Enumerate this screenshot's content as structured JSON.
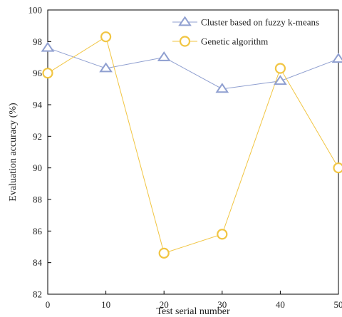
{
  "chart_data": {
    "type": "line",
    "title": "",
    "xlabel": "Test serial number",
    "ylabel": "Evaluation accuracy (%)",
    "x": [
      0,
      10,
      20,
      30,
      40,
      50
    ],
    "xlim": [
      0,
      50
    ],
    "ylim": [
      82,
      100
    ],
    "xticks": [
      0,
      10,
      20,
      30,
      40,
      50
    ],
    "yticks": [
      82,
      84,
      86,
      88,
      90,
      92,
      94,
      96,
      98,
      100
    ],
    "xtick_labels": [
      "0",
      "10",
      "20",
      "30",
      "40",
      "50"
    ],
    "ytick_labels": [
      "82",
      "84",
      "86",
      "88",
      "90",
      "92",
      "94",
      "96",
      "98",
      "100"
    ],
    "grid": false,
    "legend_position": "top-right",
    "series": [
      {
        "name": "Cluster based on fuzzy k-means",
        "values": [
          97.6,
          96.3,
          97.0,
          95.0,
          95.5,
          96.9
        ],
        "color": "#8f9fd0",
        "marker": "triangle"
      },
      {
        "name": "Genetic algorithm",
        "values": [
          96.0,
          98.3,
          84.6,
          85.8,
          96.3,
          90.0
        ],
        "color": "#f1c542",
        "marker": "circle"
      }
    ]
  }
}
